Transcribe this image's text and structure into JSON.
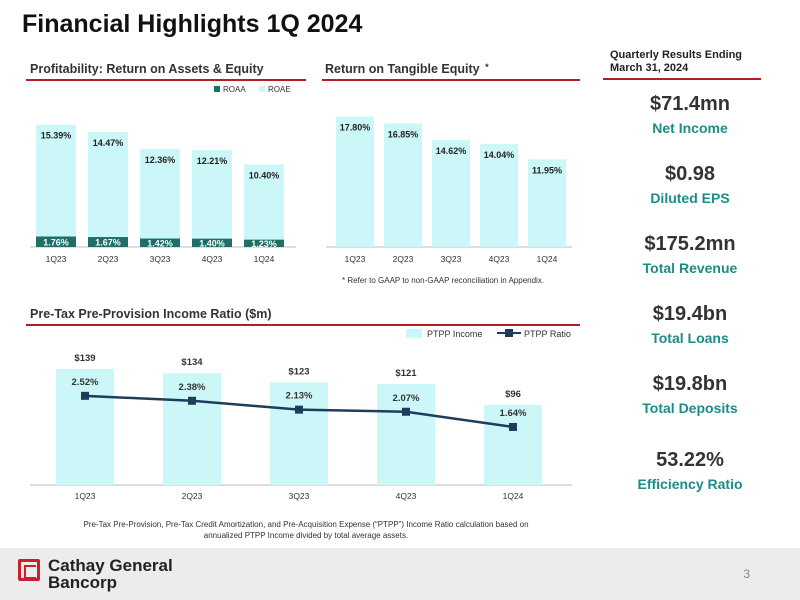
{
  "page": {
    "title": "Financial Highlights 1Q 2024",
    "page_number": "3",
    "company_line1": "Cathay General",
    "company_line2": "Bancorp"
  },
  "colors": {
    "light": "#ccf7f8",
    "teal": "#1f6f68",
    "navy": "#1f3c5b",
    "kpi_label": "#1c8c88",
    "rule": "#b11f24"
  },
  "sections": {
    "profitability": "Profitability: Return on Assets & Equity",
    "rote": "Return on Tangible Equity",
    "rote_marker": "*",
    "rote_note": "* Refer to GAAP to non-GAAP reconciliation in Appendix.",
    "ptpp": "Pre-Tax Pre-Provision Income Ratio ($m)",
    "ptpp_note_line1": "Pre-Tax Pre-Provision, Pre-Tax Credit Amortization, and Pre-Acquisition Expense (“PTPP”) Income Ratio calculation based on",
    "ptpp_note_line2": "annualized PTPP Income divided by total average assets."
  },
  "kpis": {
    "header_line1": "Quarterly Results Ending",
    "header_line2": "March 31, 2024",
    "items": [
      {
        "value": "$71.4mn",
        "label": "Net Income"
      },
      {
        "value": "$0.98",
        "label": "Diluted EPS"
      },
      {
        "value": "$175.2mn",
        "label": "Total Revenue"
      },
      {
        "value": "$19.4bn",
        "label": "Total Loans"
      },
      {
        "value": "$19.8bn",
        "label": "Total Deposits"
      },
      {
        "value": "53.22%",
        "label": "Efficiency Ratio"
      }
    ]
  },
  "chart_data": [
    {
      "type": "bar",
      "title": "Profitability: Return on Assets & Equity",
      "categories": [
        "1Q23",
        "2Q23",
        "3Q23",
        "4Q23",
        "1Q24"
      ],
      "series": [
        {
          "name": "ROAA",
          "values": [
            1.76,
            1.67,
            1.42,
            1.4,
            1.23
          ],
          "labels": [
            "1.76%",
            "1.67%",
            "1.42%",
            "1.40%",
            "1.23%"
          ]
        },
        {
          "name": "ROAE",
          "values": [
            15.39,
            14.47,
            12.36,
            12.21,
            10.4
          ],
          "labels": [
            "15.39%",
            "14.47%",
            "12.36%",
            "12.21%",
            "10.40%"
          ]
        }
      ],
      "legend": [
        "ROAA",
        "ROAE"
      ],
      "legend_position": "top-right",
      "ylim": [
        0,
        18
      ]
    },
    {
      "type": "bar",
      "title": "Return on Tangible Equity",
      "categories": [
        "1Q23",
        "2Q23",
        "3Q23",
        "4Q23",
        "1Q24"
      ],
      "values": [
        17.8,
        16.85,
        14.62,
        14.04,
        11.95
      ],
      "labels": [
        "17.80%",
        "16.85%",
        "14.62%",
        "14.04%",
        "11.95%"
      ],
      "ylim": [
        0,
        19.5
      ]
    },
    {
      "type": "bar",
      "title": "Pre-Tax Pre-Provision Income Ratio ($m)",
      "categories": [
        "1Q23",
        "2Q23",
        "3Q23",
        "4Q23",
        "1Q24"
      ],
      "series": [
        {
          "name": "PTPP Income",
          "type": "bar",
          "values": [
            139,
            134,
            123,
            121,
            96
          ],
          "labels": [
            "$139",
            "$134",
            "$123",
            "$121",
            "$96"
          ]
        },
        {
          "name": "PTPP Ratio",
          "type": "line",
          "values": [
            2.52,
            2.38,
            2.13,
            2.07,
            1.64
          ],
          "labels": [
            "2.52%",
            "2.38%",
            "2.13%",
            "2.07%",
            "1.64%"
          ]
        }
      ],
      "legend": [
        "PTPP Income",
        "PTPP Ratio"
      ],
      "legend_position": "top-right",
      "ylim_bar": [
        0,
        139
      ],
      "ylim_line": [
        0,
        3.9
      ]
    }
  ]
}
